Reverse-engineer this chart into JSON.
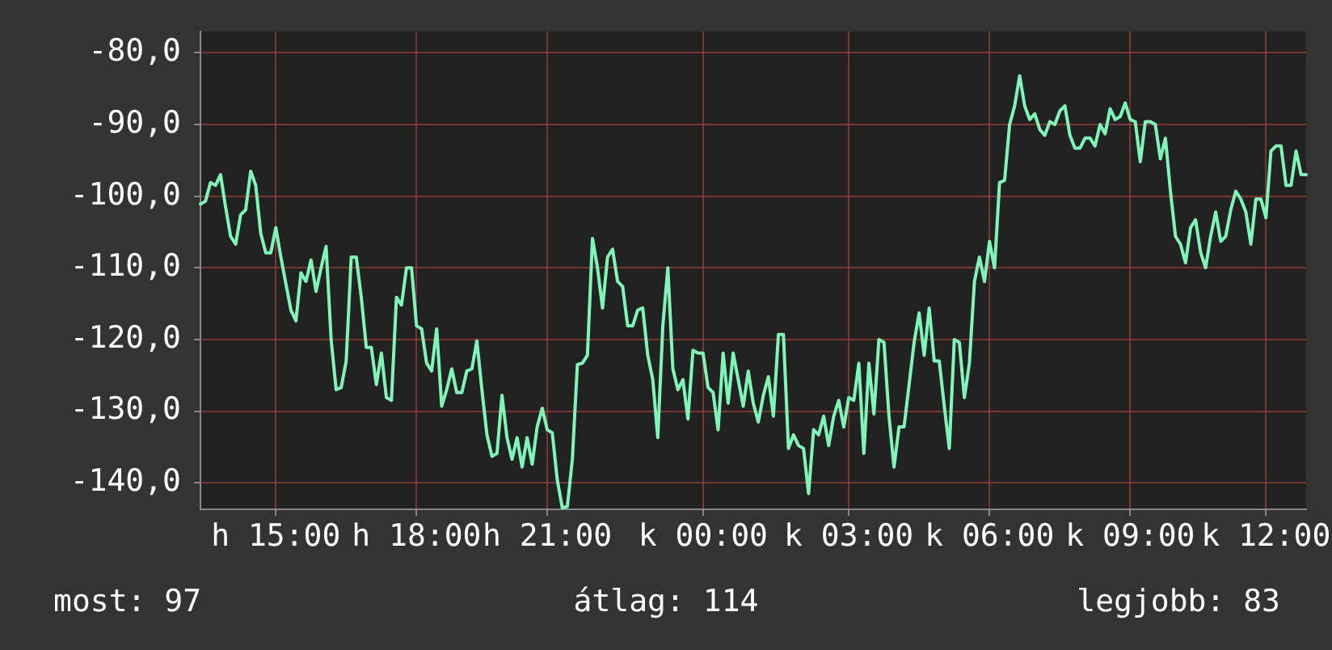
{
  "chart_data": {
    "type": "line",
    "categories": [
      null,
      null,
      null,
      null,
      null,
      null,
      null,
      null,
      null,
      null,
      null,
      null,
      null,
      null,
      null,
      "h 15:00",
      null,
      null,
      null,
      null,
      null,
      null,
      null,
      null,
      null,
      null,
      null,
      null,
      null,
      null,
      null,
      null,
      null,
      null,
      null,
      null,
      null,
      null,
      null,
      null,
      null,
      null,
      null,
      "h 18:00",
      null,
      null,
      null,
      null,
      null,
      null,
      null,
      null,
      null,
      null,
      null,
      null,
      null,
      null,
      null,
      null,
      null,
      null,
      null,
      null,
      null,
      null,
      null,
      null,
      null,
      "h 21:00",
      null,
      null,
      null,
      null,
      null,
      null,
      null,
      null,
      null,
      null,
      null,
      null,
      null,
      null,
      null,
      null,
      null,
      null,
      null,
      null,
      null,
      null,
      null,
      null,
      null,
      null,
      null,
      null,
      null,
      null,
      "k 00:00",
      null,
      null,
      null,
      null,
      null,
      null,
      null,
      null,
      null,
      null,
      null,
      null,
      null,
      null,
      null,
      null,
      null,
      null,
      null,
      null,
      null,
      null,
      null,
      null,
      null,
      null,
      null,
      null,
      "k 03:00",
      null,
      null,
      null,
      null,
      null,
      null,
      null,
      null,
      null,
      null,
      null,
      null,
      null,
      null,
      null,
      null,
      null,
      null,
      null,
      null,
      null,
      null,
      null,
      null,
      null,
      null,
      null,
      "k 06:00",
      null,
      null,
      null,
      null,
      null,
      null,
      null,
      null,
      null,
      null,
      null,
      null,
      null,
      null,
      null,
      null,
      null,
      null,
      null,
      null,
      null,
      null,
      null,
      null,
      null,
      null,
      null,
      "k 09:00",
      null,
      null,
      null,
      null,
      null,
      null,
      null,
      null,
      null,
      null,
      null,
      null,
      null,
      null,
      null,
      null,
      null,
      null,
      null,
      null,
      null,
      null,
      null,
      null,
      null,
      null,
      "k 12:00",
      null,
      null,
      null,
      null,
      null,
      null,
      null,
      null
    ],
    "series": [
      {
        "color": "#80f5b8",
        "values": [
          -101.1,
          -100.7,
          -98.1,
          -98.5,
          -97.0,
          -101.5,
          -105.6,
          -106.7,
          -102.6,
          -101.9,
          -96.5,
          -98.5,
          -105.2,
          -107.9,
          -107.9,
          -104.4,
          -108.5,
          -112.2,
          -115.9,
          -117.4,
          -110.7,
          -111.9,
          -108.9,
          -113.3,
          -110.0,
          -107.0,
          -120.0,
          -127.0,
          -126.7,
          -123.0,
          -108.5,
          -108.5,
          -114.1,
          -121.1,
          -121.1,
          -126.3,
          -121.9,
          -128.1,
          -128.5,
          -114.1,
          -115.2,
          -110.0,
          -110.0,
          -118.1,
          -118.5,
          -123.3,
          -124.4,
          -118.5,
          -129.3,
          -127.0,
          -124.1,
          -127.4,
          -127.4,
          -124.4,
          -124.1,
          -120.2,
          -127.0,
          -133.3,
          -136.3,
          -135.9,
          -127.8,
          -133.7,
          -136.7,
          -133.7,
          -137.8,
          -133.7,
          -137.4,
          -132.2,
          -129.6,
          -132.6,
          -133.0,
          -139.6,
          -143.5,
          -143.3,
          -136.7,
          -123.5,
          -123.3,
          -122.2,
          -105.9,
          -110.0,
          -115.6,
          -108.5,
          -107.4,
          -111.9,
          -112.6,
          -118.1,
          -118.1,
          -115.9,
          -115.6,
          -122.2,
          -125.6,
          -133.7,
          -118.1,
          -110.0,
          -124.1,
          -127.0,
          -125.6,
          -131.1,
          -121.5,
          -121.9,
          -121.9,
          -126.7,
          -127.4,
          -132.6,
          -121.9,
          -128.9,
          -121.9,
          -125.6,
          -129.3,
          -124.4,
          -128.9,
          -131.5,
          -127.8,
          -125.2,
          -130.7,
          -119.3,
          -119.3,
          -135.2,
          -133.3,
          -134.8,
          -135.2,
          -141.5,
          -132.6,
          -133.3,
          -130.7,
          -134.8,
          -130.7,
          -128.5,
          -132.2,
          -128.1,
          -128.5,
          -123.3,
          -135.9,
          -123.3,
          -130.4,
          -120.0,
          -120.4,
          -130.7,
          -137.8,
          -132.2,
          -132.2,
          -126.3,
          -120.4,
          -116.3,
          -122.2,
          -115.6,
          -123.0,
          -123.0,
          -129.3,
          -135.2,
          -120.0,
          -120.4,
          -128.1,
          -123.3,
          -111.9,
          -108.5,
          -111.9,
          -106.3,
          -110.0,
          -98.1,
          -97.8,
          -90.0,
          -87.4,
          -83.2,
          -87.4,
          -89.3,
          -88.5,
          -90.7,
          -91.5,
          -89.6,
          -90.0,
          -88.1,
          -87.4,
          -91.5,
          -93.3,
          -93.3,
          -91.9,
          -91.9,
          -93.0,
          -90.0,
          -91.3,
          -87.8,
          -89.3,
          -88.9,
          -87.0,
          -89.3,
          -89.6,
          -95.2,
          -89.6,
          -89.6,
          -90.0,
          -94.8,
          -91.9,
          -99.3,
          -105.6,
          -106.7,
          -109.3,
          -104.4,
          -103.3,
          -107.8,
          -110.0,
          -105.6,
          -102.2,
          -106.3,
          -105.6,
          -101.9,
          -99.3,
          -100.4,
          -102.2,
          -106.7,
          -100.4,
          -100.4,
          -103.0,
          -93.7,
          -93.0,
          -93.0,
          -98.5,
          -98.5,
          -93.7,
          -97.0,
          -97.0
        ]
      }
    ],
    "ylim": [
      -143.7,
      -77
    ],
    "yticks": [
      {
        "value": -80,
        "label": "-80,0"
      },
      {
        "value": -90,
        "label": "-90,0"
      },
      {
        "value": -100,
        "label": "-100,0"
      },
      {
        "value": -110,
        "label": "-110,0"
      },
      {
        "value": -120,
        "label": "-120,0"
      },
      {
        "value": -130,
        "label": "-130,0"
      },
      {
        "value": -140,
        "label": "-140,0"
      }
    ],
    "grid": true,
    "legend": false,
    "marker": "none",
    "line_style": "solid",
    "annotations": [
      "most: 97",
      "átlag: 114",
      "legjobb: 83"
    ]
  }
}
